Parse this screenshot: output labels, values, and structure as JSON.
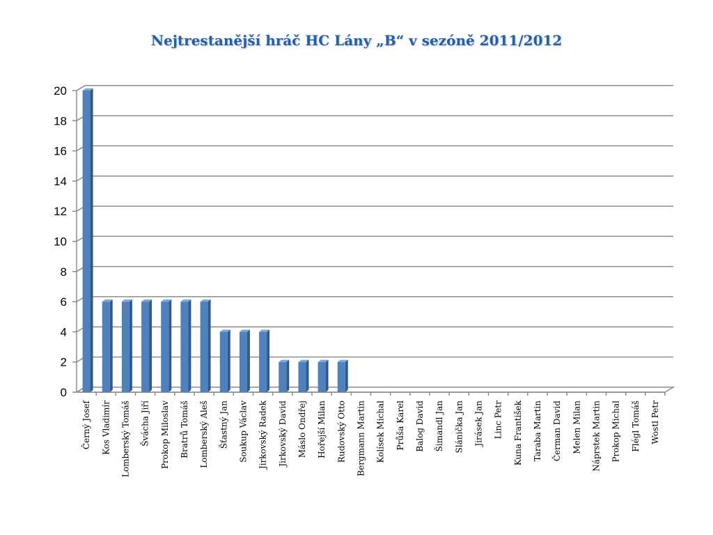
{
  "chart_data": {
    "type": "bar",
    "title": "Nejtrestanější hráč HC Lány „B“ v sezóně 2011/2012",
    "xlabel": "",
    "ylabel": "",
    "ylim": [
      0,
      20
    ],
    "yticks": [
      0,
      2,
      4,
      6,
      8,
      10,
      12,
      14,
      16,
      18,
      20
    ],
    "grid": true,
    "bar_color": "#4f81bd",
    "categories": [
      "Černý Josef",
      "Kos Vladimír",
      "Lomberský Tomáš",
      "Švácha Jiří",
      "Prokop Miloslav",
      "Bratrů Tomáš",
      "Lomberský Aleš",
      "Šťastný Jan",
      "Soukup Václav",
      "Jirkovský Radek",
      "Jirkovský David",
      "Máslo Ondřej",
      "Hořejší Milan",
      "Rudovský Otto",
      "Bergmann Martin",
      "Kolísek Michal",
      "Průša Karel",
      "Balog David",
      "Šimandl Jan",
      "Slánička Jan",
      "Jirásek Jan",
      "Linc Petr",
      "Kuna František",
      "Taraba Martin",
      "Čerman David",
      "Melen Milan",
      "Náprstek Martin",
      "Prokop Michal",
      "Flégl Tomáš",
      "Wostl Petr"
    ],
    "values": [
      20,
      6,
      6,
      6,
      6,
      6,
      6,
      4,
      4,
      4,
      2,
      2,
      2,
      2,
      0,
      0,
      0,
      0,
      0,
      0,
      0,
      0,
      0,
      0,
      0,
      0,
      0,
      0,
      0,
      0
    ]
  }
}
